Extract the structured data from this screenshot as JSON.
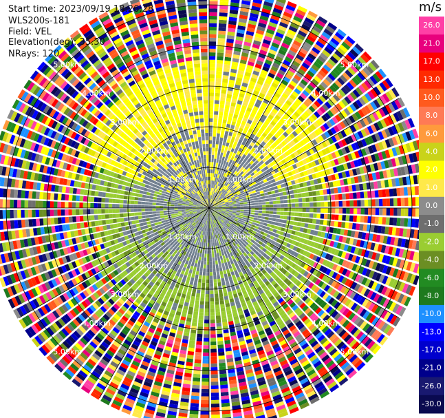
{
  "header": {
    "start_time": "Start time: 2023/09/19 18:26:28",
    "instrument": "WLS200s-181",
    "field": "Field: VEL",
    "elevation": "Elevation(deg): 35.30",
    "nrays": "NRays: 120"
  },
  "colorbar": {
    "unit": "m/s",
    "ticks": [
      "26.0",
      "21.0",
      "17.0",
      "13.0",
      "10.0",
      "8.0",
      "6.0",
      "4.0",
      "2.0",
      "1.0",
      "0.0",
      "-1.0",
      "-2.0",
      "-4.0",
      "-6.0",
      "-8.0",
      "-10.0",
      "-13.0",
      "-17.0",
      "-21.0",
      "-26.0",
      "-30.0"
    ],
    "colors": [
      "#ff3fa6",
      "#e8007d",
      "#ff0000",
      "#ff2a00",
      "#ff5a1e",
      "#ff7a55",
      "#ff9a3c",
      "#c9d31a",
      "#ffff00",
      "#ffe94a",
      "#8c8c8c",
      "#6e6e6e",
      "#9acd32",
      "#6b8e23",
      "#228b22",
      "#1e7a1e",
      "#1e90ff",
      "#0000ff",
      "#0000cd",
      "#00008b",
      "#191970",
      "#0a0a50"
    ]
  },
  "chart_data": {
    "type": "ppi_polar",
    "field": "VEL",
    "unit": "m/s",
    "nrays": 120,
    "elevation_deg": 35.3,
    "range_ring_labels": [
      "1.00km",
      "2.00km",
      "3.00km",
      "4.00km",
      "5.00km"
    ],
    "range_rings_km": [
      1,
      2,
      3,
      4,
      5
    ],
    "max_range_km": 5.4,
    "radial_spokes_deg": [
      0,
      30,
      60,
      90,
      120,
      150,
      180,
      210,
      240,
      270,
      300,
      330
    ],
    "sectors": [
      {
        "region": "north",
        "dominant_velocity": 2.0
      },
      {
        "region": "center",
        "dominant_velocity": 0.0
      },
      {
        "region": "south",
        "dominant_velocity": -2.0
      },
      {
        "region": "outer",
        "dominant_velocity": "noise"
      }
    ]
  }
}
